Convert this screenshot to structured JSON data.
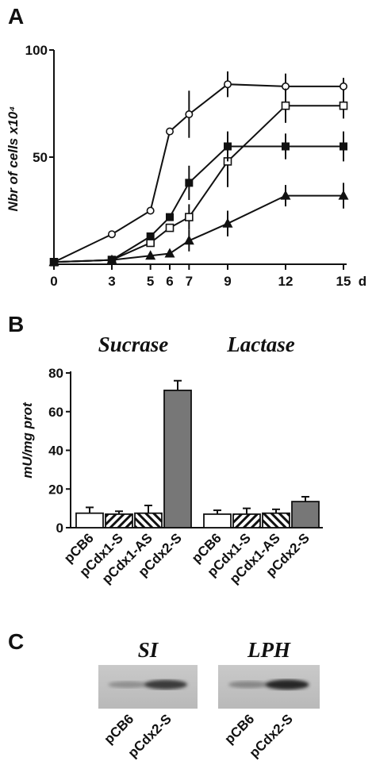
{
  "panels": {
    "a": "A",
    "b": "B",
    "c": "C"
  },
  "chart_data": [
    {
      "panel": "A",
      "type": "line",
      "ylabel": "Nbr of cells x10⁴",
      "xlabel": "",
      "x_unit": "d",
      "xticks": [
        0,
        3,
        5,
        6,
        7,
        9,
        12,
        15
      ],
      "yticks": [
        50,
        100
      ],
      "ylim": [
        0,
        100
      ],
      "xlim": [
        0,
        15
      ],
      "series": [
        {
          "marker": "open-circle",
          "x": [
            0,
            3,
            5,
            6,
            7,
            9,
            12,
            15
          ],
          "y": [
            1,
            14,
            25,
            62,
            70,
            84,
            83,
            83
          ],
          "err": [
            0,
            0,
            0,
            0,
            11,
            6,
            6,
            4
          ]
        },
        {
          "marker": "open-square",
          "x": [
            0,
            3,
            5,
            6,
            7,
            9,
            12,
            15
          ],
          "y": [
            1,
            2,
            10,
            17,
            22,
            48,
            74,
            74
          ],
          "err": [
            0,
            0,
            0,
            0,
            6,
            12,
            8,
            6
          ]
        },
        {
          "marker": "filled-square",
          "x": [
            0,
            3,
            5,
            6,
            7,
            9,
            12,
            15
          ],
          "y": [
            1,
            2,
            13,
            22,
            38,
            55,
            55,
            55
          ],
          "err": [
            0,
            0,
            0,
            0,
            8,
            7,
            6,
            7
          ]
        },
        {
          "marker": "filled-triangle",
          "x": [
            0,
            3,
            5,
            6,
            7,
            9,
            12,
            15
          ],
          "y": [
            1,
            2,
            4,
            5,
            11,
            19,
            32,
            32
          ],
          "err": [
            0,
            0,
            0,
            0,
            5,
            6,
            5,
            6
          ]
        }
      ]
    },
    {
      "panel": "B",
      "type": "bar",
      "ylabel": "mU/mg prot",
      "ylim": [
        0,
        80
      ],
      "yticks": [
        0,
        20,
        40,
        60,
        80
      ],
      "groups": [
        {
          "title": "Sucrase",
          "values": [
            7.5,
            7,
            7.5,
            71
          ],
          "err": [
            3,
            1.5,
            4,
            5
          ]
        },
        {
          "title": "Lactase",
          "values": [
            7,
            7,
            7.5,
            13.5
          ],
          "err": [
            2,
            3,
            2,
            2.5
          ]
        }
      ],
      "categories": [
        "pCB6",
        "pCdx1-S",
        "pCdx1-AS",
        "pCdx2-S"
      ],
      "fills": [
        "#ffffff",
        "hatch-diag",
        "hatch-cross",
        "#777777"
      ]
    }
  ],
  "gels": [
    {
      "title": "SI",
      "lanes": [
        "pCB6",
        "pCdx2-S"
      ],
      "band_intensity": [
        0.3,
        0.75
      ]
    },
    {
      "title": "LPH",
      "lanes": [
        "pCB6",
        "pCdx2-S"
      ],
      "band_intensity": [
        0.35,
        0.85
      ]
    }
  ]
}
